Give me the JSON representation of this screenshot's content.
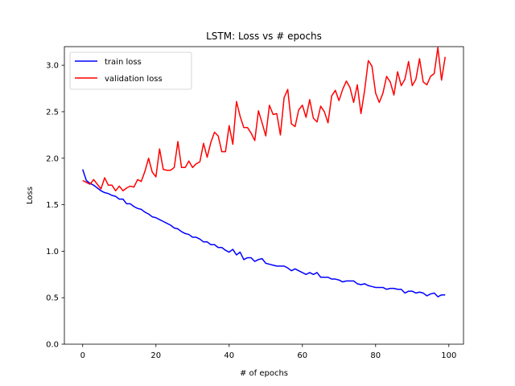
{
  "chart_data": {
    "type": "line",
    "title": "LSTM: Loss vs # epochs",
    "xlabel": "# of epochs",
    "ylabel": "Loss",
    "xlim": [
      -5,
      104
    ],
    "ylim": [
      0,
      3.2
    ],
    "xticks": [
      0,
      20,
      40,
      60,
      80,
      100
    ],
    "xtick_labels": [
      "0",
      "20",
      "40",
      "60",
      "80",
      "100"
    ],
    "yticks": [
      0,
      0.5,
      1.0,
      1.5,
      2.0,
      2.5,
      3.0
    ],
    "ytick_labels": [
      "0.0",
      "0.5",
      "1.0",
      "1.5",
      "2.0",
      "2.5",
      "3.0"
    ],
    "grid": false,
    "legend_position": "top-left",
    "x": [
      0,
      1,
      2,
      3,
      4,
      5,
      6,
      7,
      8,
      9,
      10,
      11,
      12,
      13,
      14,
      15,
      16,
      17,
      18,
      19,
      20,
      21,
      22,
      23,
      24,
      25,
      26,
      27,
      28,
      29,
      30,
      31,
      32,
      33,
      34,
      35,
      36,
      37,
      38,
      39,
      40,
      41,
      42,
      43,
      44,
      45,
      46,
      47,
      48,
      49,
      50,
      51,
      52,
      53,
      54,
      55,
      56,
      57,
      58,
      59,
      60,
      61,
      62,
      63,
      64,
      65,
      66,
      67,
      68,
      69,
      70,
      71,
      72,
      73,
      74,
      75,
      76,
      77,
      78,
      79,
      80,
      81,
      82,
      83,
      84,
      85,
      86,
      87,
      88,
      89,
      90,
      91,
      92,
      93,
      94,
      95,
      96,
      97,
      98,
      99
    ],
    "series": [
      {
        "name": "train loss",
        "color": "#0000ff",
        "values": [
          1.88,
          1.76,
          1.73,
          1.71,
          1.68,
          1.65,
          1.63,
          1.62,
          1.6,
          1.59,
          1.56,
          1.56,
          1.51,
          1.51,
          1.48,
          1.46,
          1.45,
          1.42,
          1.4,
          1.37,
          1.36,
          1.34,
          1.32,
          1.3,
          1.28,
          1.25,
          1.24,
          1.21,
          1.19,
          1.18,
          1.15,
          1.15,
          1.13,
          1.1,
          1.1,
          1.07,
          1.07,
          1.04,
          1.04,
          1.01,
          0.99,
          1.02,
          0.96,
          0.99,
          0.91,
          0.93,
          0.93,
          0.89,
          0.91,
          0.92,
          0.87,
          0.86,
          0.85,
          0.84,
          0.84,
          0.84,
          0.82,
          0.79,
          0.81,
          0.79,
          0.77,
          0.75,
          0.77,
          0.75,
          0.77,
          0.72,
          0.72,
          0.72,
          0.7,
          0.7,
          0.69,
          0.67,
          0.68,
          0.68,
          0.68,
          0.65,
          0.64,
          0.65,
          0.63,
          0.62,
          0.61,
          0.61,
          0.61,
          0.59,
          0.6,
          0.6,
          0.59,
          0.59,
          0.55,
          0.57,
          0.57,
          0.55,
          0.56,
          0.55,
          0.52,
          0.54,
          0.55,
          0.51,
          0.53,
          0.53
        ]
      },
      {
        "name": "validation loss",
        "color": "#ff0000",
        "values": [
          1.76,
          1.74,
          1.72,
          1.77,
          1.72,
          1.67,
          1.79,
          1.71,
          1.71,
          1.65,
          1.7,
          1.65,
          1.68,
          1.7,
          1.69,
          1.77,
          1.75,
          1.86,
          2.0,
          1.85,
          1.8,
          2.1,
          1.88,
          1.87,
          1.87,
          1.9,
          2.18,
          1.9,
          1.9,
          1.97,
          1.9,
          1.94,
          1.96,
          2.16,
          2.01,
          2.17,
          2.28,
          2.24,
          2.07,
          2.07,
          2.35,
          2.15,
          2.61,
          2.45,
          2.33,
          2.33,
          2.27,
          2.19,
          2.51,
          2.38,
          2.24,
          2.57,
          2.47,
          2.48,
          2.25,
          2.65,
          2.74,
          2.37,
          2.34,
          2.52,
          2.57,
          2.44,
          2.63,
          2.43,
          2.39,
          2.56,
          2.5,
          2.38,
          2.67,
          2.73,
          2.62,
          2.74,
          2.83,
          2.76,
          2.6,
          2.79,
          2.48,
          2.73,
          3.05,
          2.99,
          2.7,
          2.6,
          2.7,
          2.88,
          2.82,
          2.68,
          2.93,
          2.78,
          2.85,
          3.04,
          2.78,
          2.85,
          3.07,
          2.82,
          2.79,
          2.88,
          2.91,
          3.19,
          2.84,
          3.09
        ]
      }
    ]
  }
}
